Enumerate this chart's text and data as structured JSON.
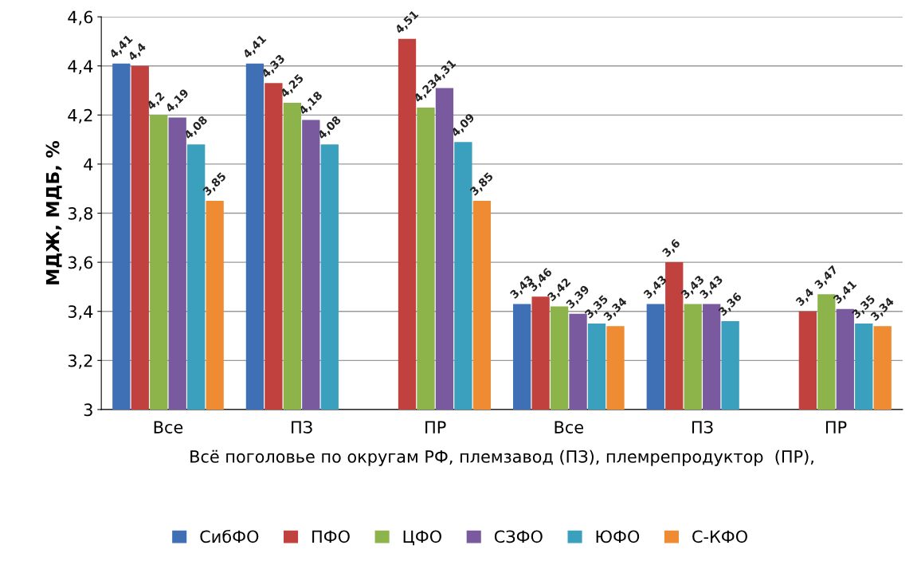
{
  "chart_data": {
    "type": "bar",
    "xlabel": "Всё поголовье по округам РФ, племзавод (ПЗ), племрепродуктор  (ПР),",
    "ylabel": "МДЖ, МДБ, %",
    "categories": [
      "Все",
      "ПЗ",
      "ПР",
      "Все",
      "ПЗ",
      "ПР"
    ],
    "series": [
      {
        "name": "СибФО",
        "color": "#3f6fb5",
        "values": [
          4.41,
          4.41,
          null,
          3.43,
          3.43,
          null
        ],
        "value_labels": [
          "4,41",
          "4,41",
          null,
          "3,43",
          "3,43",
          null
        ]
      },
      {
        "name": "ПФО",
        "color": "#c0413d",
        "values": [
          4.4,
          4.33,
          4.51,
          3.46,
          3.6,
          3.4
        ],
        "value_labels": [
          "4,4",
          "4,33",
          "4,51",
          "3,46",
          "3,6",
          "3,4"
        ]
      },
      {
        "name": "ЦФО",
        "color": "#8db44b",
        "values": [
          4.2,
          4.25,
          4.23,
          3.42,
          3.43,
          3.47
        ],
        "value_labels": [
          "4,2",
          "4,25",
          "4,23",
          "3,42",
          "3,43",
          "3,47"
        ]
      },
      {
        "name": "СЗФО",
        "color": "#7a5a9e",
        "values": [
          4.19,
          4.18,
          4.31,
          3.39,
          3.43,
          3.41
        ],
        "value_labels": [
          "4,19",
          "4,18",
          "4,31",
          "3,39",
          "3,43",
          "3,41"
        ]
      },
      {
        "name": "ЮФО",
        "color": "#3aa0bd",
        "values": [
          4.08,
          4.08,
          4.09,
          3.35,
          3.36,
          3.35
        ],
        "value_labels": [
          "4,08",
          "4,08",
          "4,09",
          "3,35",
          "3,36",
          "3,35"
        ]
      },
      {
        "name": "С-КФО",
        "color": "#ef8b33",
        "values": [
          3.85,
          null,
          3.85,
          3.34,
          null,
          3.34
        ],
        "value_labels": [
          "3,85",
          null,
          "3,85",
          "3,34",
          null,
          "3,34"
        ]
      }
    ],
    "ylim": [
      3,
      4.6
    ],
    "yticks": [
      3,
      {
        "value": 3.2,
        "label": "3,2"
      },
      {
        "value": 3.4,
        "label": "3,4"
      },
      {
        "value": 3.6,
        "label": "3,6"
      },
      {
        "value": 3.8,
        "label": "3,8"
      },
      4,
      {
        "value": 4.2,
        "label": "4,2"
      },
      {
        "value": 4.4,
        "label": "4,4"
      },
      {
        "value": 4.6,
        "label": "4,6"
      }
    ],
    "grid": "y",
    "legend": "bottom"
  }
}
